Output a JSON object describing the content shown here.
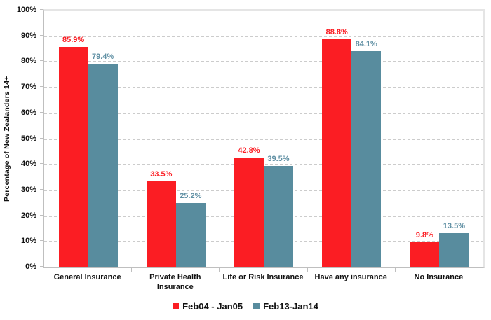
{
  "chart_data": {
    "type": "bar",
    "title": "",
    "xlabel": "",
    "ylabel": "Percentage of New Zealanders 14+",
    "ylim": [
      0,
      100
    ],
    "ytick_step": 10,
    "ytick_labels": [
      "0%",
      "10%",
      "20%",
      "30%",
      "40%",
      "50%",
      "60%",
      "70%",
      "80%",
      "90%",
      "100%"
    ],
    "grid": "horizontal-dashed",
    "legend_position": "bottom-center",
    "categories": [
      "General Insurance",
      "Private Health Insurance",
      "Life or Risk Insurance",
      "Have any insurance",
      "No Insurance"
    ],
    "category_label_lines": [
      [
        "General Insurance"
      ],
      [
        "Private Health",
        "Insurance"
      ],
      [
        "Life or Risk Insurance"
      ],
      [
        "Have any insurance"
      ],
      [
        "No Insurance"
      ]
    ],
    "series": [
      {
        "name": "Feb04 - Jan05",
        "color": "#fb1d23",
        "label_color": "#fb1d23",
        "values": [
          85.9,
          33.5,
          42.8,
          88.8,
          9.8
        ],
        "value_labels": [
          "85.9%",
          "33.5%",
          "42.8%",
          "88.8%",
          "9.8%"
        ]
      },
      {
        "name": "Feb13-Jan14",
        "color": "#588c9e",
        "label_color": "#6090a4",
        "values": [
          79.4,
          25.2,
          39.5,
          84.1,
          13.5
        ],
        "value_labels": [
          "79.4%",
          "25.2%",
          "39.5%",
          "84.1%",
          "13.5%"
        ]
      }
    ],
    "colors": {
      "gridline": "#cccccc",
      "axis_line": "#bfbfbf",
      "plot_border": "#e5e5e5",
      "text": "#111111"
    }
  }
}
